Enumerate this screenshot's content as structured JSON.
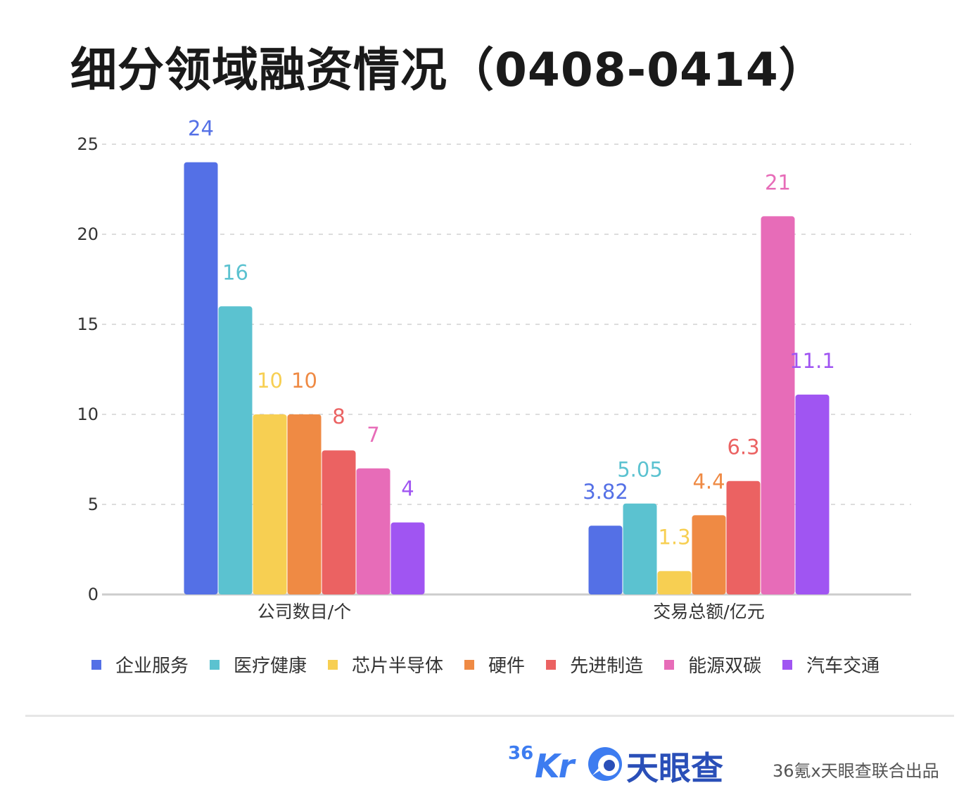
{
  "title": "细分领域融资情况（0408-0414）",
  "chart_data": {
    "type": "bar",
    "categories": [
      "公司数目/个",
      "交易总额/亿元"
    ],
    "series": [
      {
        "name": "企业服务",
        "values": [
          24,
          3.82
        ],
        "labels": [
          "24",
          "3.82"
        ],
        "color": "#5470e6"
      },
      {
        "name": "医疗健康",
        "values": [
          16,
          5.05
        ],
        "labels": [
          "16",
          "5.05"
        ],
        "color": "#5bc2d0"
      },
      {
        "name": "芯片半导体",
        "values": [
          10,
          1.3
        ],
        "labels": [
          "10",
          "1.3"
        ],
        "color": "#f7cf52"
      },
      {
        "name": "硬件",
        "values": [
          10,
          4.4
        ],
        "labels": [
          "10",
          "4.4"
        ],
        "color": "#ef8a44"
      },
      {
        "name": "先进制造",
        "values": [
          8,
          6.3
        ],
        "labels": [
          "8",
          "6.3"
        ],
        "color": "#eb6262"
      },
      {
        "name": "能源双碳",
        "values": [
          7,
          21
        ],
        "labels": [
          "7",
          "21"
        ],
        "color": "#e76cb8"
      },
      {
        "name": "汽车交通",
        "values": [
          4,
          11.1
        ],
        "labels": [
          "4",
          "11.1"
        ],
        "color": "#a055f2"
      }
    ],
    "ylim": [
      0,
      25
    ],
    "yticks": [
      0,
      5,
      10,
      15,
      20,
      25
    ],
    "grid": true,
    "legend": "bottom"
  },
  "footer": {
    "logo_36kr_num": "36",
    "logo_36kr_kr": "Kr",
    "logo_tyc": "天眼查",
    "credit": "36氪x天眼查联合出品"
  }
}
